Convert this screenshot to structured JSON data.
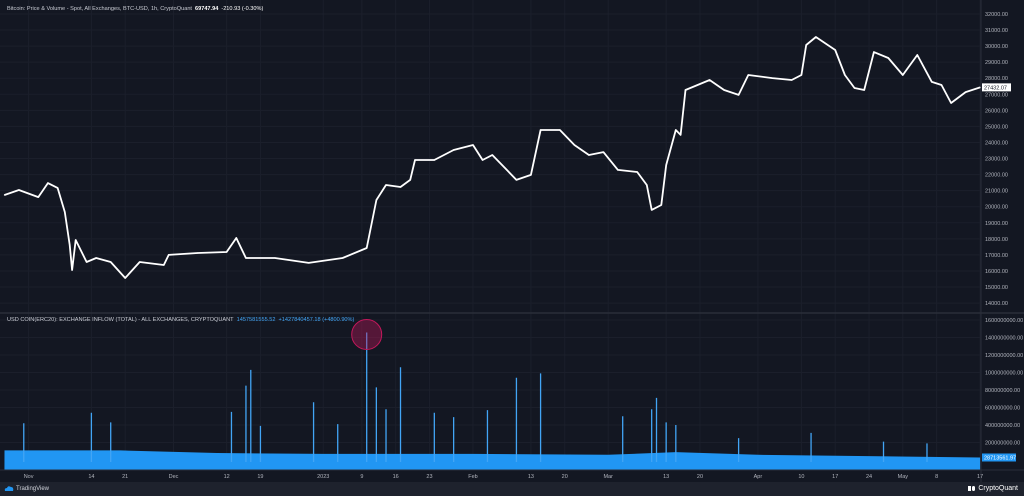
{
  "header": {
    "price_title": "Bitcoin: Price & Volume - Spot, All Exchanges, BTC-USD, 1h, CryptoQuant",
    "price_value": "69747.94",
    "price_change": "-210.93 (-0.30%)",
    "inflow_title": "USD COIN(ERC20): EXCHANGE INFLOW (TOTAL) - ALL EXCHANGES, CRYPTOQUANT",
    "inflow_value": "1457581555.52",
    "inflow_change": "+1427840457.18 (+4800.90%)"
  },
  "footer": {
    "left_logo": "TradingView",
    "right_logo": "CryptoQuant"
  },
  "colors": {
    "background": "#131722",
    "grid": "#1e222d",
    "price_line": "#ffffff",
    "inflow": "#2196f3",
    "highlight": "#c2185b"
  },
  "chart_data": [
    {
      "type": "line",
      "series": [
        {
          "name": "Bitcoin: Price & Volume",
          "color": "#ffffff"
        }
      ],
      "ylim": [
        13500,
        32400
      ],
      "yticks": [
        "32000.00",
        "31000.00",
        "30000.00",
        "29000.00",
        "28000.00",
        "27000.00",
        "26000.00",
        "25000.00",
        "24000.00",
        "23000.00",
        "22000.00",
        "21000.00",
        "20000.00",
        "19000.00",
        "18000.00",
        "17000.00",
        "16000.00",
        "15000.00",
        "14000.00"
      ],
      "last_value_label": "27432.07",
      "points": [
        [
          "2022-10-27T00:00",
          20730
        ],
        [
          "2022-10-30T00:00",
          21040
        ],
        [
          "2022-11-03T00:00",
          20600
        ],
        [
          "2022-11-05T00:00",
          21470
        ],
        [
          "2022-11-07T00:00",
          21170
        ],
        [
          "2022-11-08T12:00",
          19670
        ],
        [
          "2022-11-09T12:00",
          17620
        ],
        [
          "2022-11-10T00:00",
          16060
        ],
        [
          "2022-11-10T18:00",
          17930
        ],
        [
          "2022-11-13T00:00",
          16560
        ],
        [
          "2022-11-15T00:00",
          16810
        ],
        [
          "2022-11-18T00:00",
          16560
        ],
        [
          "2022-11-21T00:00",
          15560
        ],
        [
          "2022-11-24T00:00",
          16560
        ],
        [
          "2022-11-29T00:00",
          16370
        ],
        [
          "2022-11-30T00:00",
          17000
        ],
        [
          "2022-12-06T00:00",
          17120
        ],
        [
          "2022-12-12T00:00",
          17180
        ],
        [
          "2022-12-14T00:00",
          18050
        ],
        [
          "2022-12-16T00:00",
          16810
        ],
        [
          "2022-12-22T00:00",
          16810
        ],
        [
          "2022-12-29T00:00",
          16500
        ],
        [
          "2023-01-05T00:00",
          16810
        ],
        [
          "2023-01-10T00:00",
          17430
        ],
        [
          "2023-01-12T00:00",
          20420
        ],
        [
          "2023-01-14T00:00",
          21350
        ],
        [
          "2023-01-17T00:00",
          21230
        ],
        [
          "2023-01-19T00:00",
          21670
        ],
        [
          "2023-01-20T00:00",
          22910
        ],
        [
          "2023-01-24T00:00",
          22910
        ],
        [
          "2023-01-28T00:00",
          23530
        ],
        [
          "2023-02-01T00:00",
          23840
        ],
        [
          "2023-02-03T00:00",
          22910
        ],
        [
          "2023-02-05T00:00",
          23220
        ],
        [
          "2023-02-08T00:00",
          22290
        ],
        [
          "2023-02-10T00:00",
          21670
        ],
        [
          "2023-02-13T00:00",
          21980
        ],
        [
          "2023-02-15T00:00",
          24780
        ],
        [
          "2023-02-19T00:00",
          24780
        ],
        [
          "2023-02-22T00:00",
          23840
        ],
        [
          "2023-02-25T00:00",
          23220
        ],
        [
          "2023-02-28T00:00",
          23400
        ],
        [
          "2023-03-03T00:00",
          22290
        ],
        [
          "2023-03-07T00:00",
          22160
        ],
        [
          "2023-03-09T00:00",
          21350
        ],
        [
          "2023-03-10T00:00",
          19800
        ],
        [
          "2023-03-12T00:00",
          20110
        ],
        [
          "2023-03-13T00:00",
          22600
        ],
        [
          "2023-03-15T00:00",
          24780
        ],
        [
          "2023-03-16T00:00",
          24470
        ],
        [
          "2023-03-17T00:00",
          27270
        ],
        [
          "2023-03-22T00:00",
          27890
        ],
        [
          "2023-03-25T00:00",
          27270
        ],
        [
          "2023-03-28T00:00",
          26960
        ],
        [
          "2023-03-30T00:00",
          28200
        ],
        [
          "2023-04-04T00:00",
          28010
        ],
        [
          "2023-04-08T00:00",
          27890
        ],
        [
          "2023-04-10T00:00",
          28200
        ],
        [
          "2023-04-11T00:00",
          30070
        ],
        [
          "2023-04-13T00:00",
          30570
        ],
        [
          "2023-04-17T00:00",
          29760
        ],
        [
          "2023-04-19T00:00",
          28200
        ],
        [
          "2023-04-21T00:00",
          27390
        ],
        [
          "2023-04-23T00:00",
          27270
        ],
        [
          "2023-04-25T00:00",
          29630
        ],
        [
          "2023-04-28T00:00",
          29260
        ],
        [
          "2023-05-01T00:00",
          28200
        ],
        [
          "2023-05-04T00:00",
          29450
        ],
        [
          "2023-05-07T00:00",
          27770
        ],
        [
          "2023-05-09T00:00",
          27580
        ],
        [
          "2023-05-11T00:00",
          26460
        ],
        [
          "2023-05-14T00:00",
          27140
        ],
        [
          "2023-05-17T00:00",
          27432.07
        ]
      ]
    },
    {
      "type": "area",
      "series": [
        {
          "name": "USD COIN(ERC20): EXCHANGE INFLOW (TOTAL)",
          "color": "#2196f3"
        }
      ],
      "ylim": [
        0,
        1600000000
      ],
      "yticks": [
        "1600000000.00",
        "1400000000.00",
        "1200000000.00",
        "1000000000.00",
        "800000000.00",
        "600000000.00",
        "400000000.00",
        "200000000.00"
      ],
      "last_value_label": "28713561.97",
      "highlighted_point": [
        "2023-01-10T00:00",
        1457581555.52
      ],
      "baseline": [
        [
          "2022-10-27T00:00",
          110000000
        ],
        [
          "2022-11-20T00:00",
          110000000
        ],
        [
          "2022-12-10T00:00",
          80000000
        ],
        [
          "2023-01-01T00:00",
          70000000
        ],
        [
          "2023-02-01T00:00",
          70000000
        ],
        [
          "2023-03-01T00:00",
          60000000
        ],
        [
          "2023-03-15T00:00",
          90000000
        ],
        [
          "2023-04-01T00:00",
          60000000
        ],
        [
          "2023-05-17T00:00",
          28713561.97
        ]
      ],
      "spikes": [
        [
          "2022-10-31T00:00",
          420000000
        ],
        [
          "2022-11-14T00:00",
          540000000
        ],
        [
          "2022-11-18T00:00",
          430000000
        ],
        [
          "2022-12-13T00:00",
          550000000
        ],
        [
          "2022-12-16T00:00",
          850000000
        ],
        [
          "2022-12-17T00:00",
          1030000000
        ],
        [
          "2022-12-19T00:00",
          390000000
        ],
        [
          "2022-12-30T00:00",
          660000000
        ],
        [
          "2023-01-04T00:00",
          410000000
        ],
        [
          "2023-01-10T00:00",
          1457581555.52
        ],
        [
          "2023-01-12T00:00",
          830000000
        ],
        [
          "2023-01-14T00:00",
          580000000
        ],
        [
          "2023-01-17T00:00",
          1060000000
        ],
        [
          "2023-01-24T00:00",
          540000000
        ],
        [
          "2023-01-28T00:00",
          490000000
        ],
        [
          "2023-02-04T00:00",
          570000000
        ],
        [
          "2023-02-10T00:00",
          940000000
        ],
        [
          "2023-02-15T00:00",
          990000000
        ],
        [
          "2023-03-04T00:00",
          500000000
        ],
        [
          "2023-03-10T00:00",
          580000000
        ],
        [
          "2023-03-11T00:00",
          710000000
        ],
        [
          "2023-03-13T00:00",
          430000000
        ],
        [
          "2023-03-15T00:00",
          400000000
        ],
        [
          "2023-03-28T00:00",
          250000000
        ],
        [
          "2023-04-12T00:00",
          310000000
        ],
        [
          "2023-04-27T00:00",
          210000000
        ],
        [
          "2023-05-06T00:00",
          190000000
        ]
      ]
    }
  ],
  "time_axis": [
    [
      "2022-11-01",
      "Nov"
    ],
    [
      "2022-11-14",
      "14"
    ],
    [
      "2022-11-21",
      "21"
    ],
    [
      "2022-12-01",
      "Dec"
    ],
    [
      "2022-12-12",
      "12"
    ],
    [
      "2022-12-19",
      "19"
    ],
    [
      "2023-01-01",
      "2023"
    ],
    [
      "2023-01-09",
      "9"
    ],
    [
      "2023-01-16",
      "16"
    ],
    [
      "2023-01-23",
      "23"
    ],
    [
      "2023-02-01",
      "Feb"
    ],
    [
      "2023-02-13",
      "13"
    ],
    [
      "2023-02-20",
      "20"
    ],
    [
      "2023-03-01",
      "Mar"
    ],
    [
      "2023-03-13",
      "13"
    ],
    [
      "2023-03-20",
      "20"
    ],
    [
      "2023-04-01",
      "Apr"
    ],
    [
      "2023-04-10",
      "10"
    ],
    [
      "2023-04-17",
      "17"
    ],
    [
      "2023-04-24",
      "24"
    ],
    [
      "2023-05-01",
      "May"
    ],
    [
      "2023-05-08",
      "8"
    ],
    [
      "2023-05-17",
      "17"
    ]
  ]
}
